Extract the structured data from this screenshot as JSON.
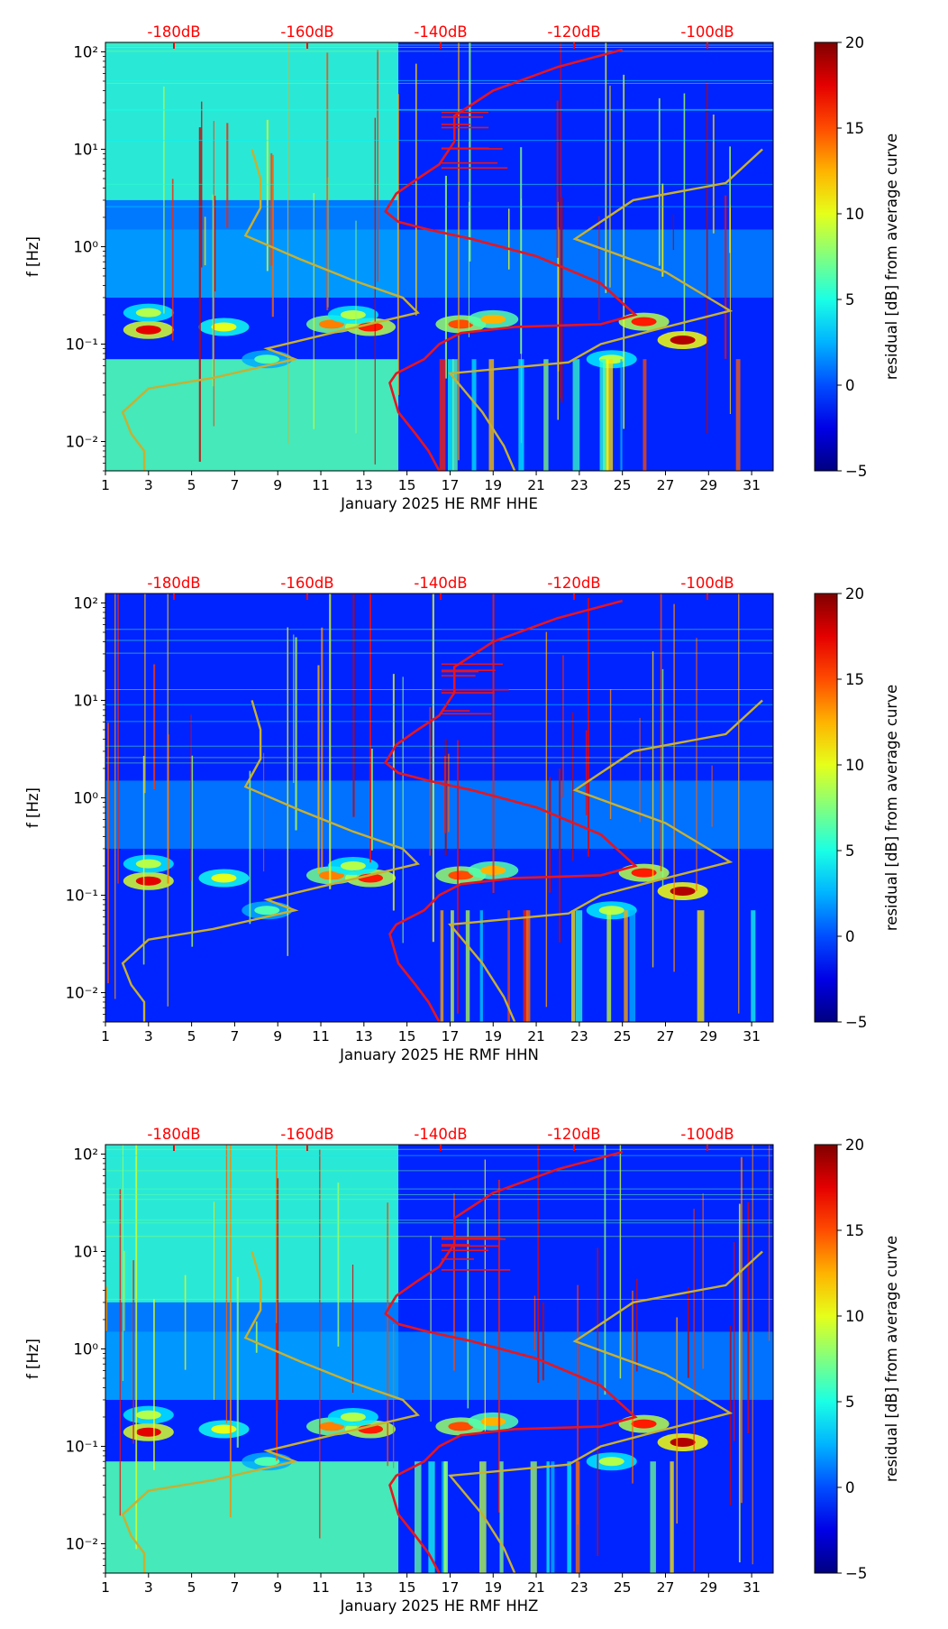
{
  "chart_data": [
    {
      "type": "heatmap",
      "channel": "HHE",
      "xlabel": "January 2025 HE RMF  HHE",
      "ylabel": "f [Hz]",
      "xlim": [
        1,
        32
      ],
      "ylim": [
        0.005,
        125
      ],
      "y_scale": "log",
      "x_ticks": [
        "1",
        "3",
        "5",
        "7",
        "9",
        "11",
        "13",
        "15",
        "17",
        "19",
        "21",
        "23",
        "25",
        "27",
        "29",
        "31"
      ],
      "y_ticks": [
        "10⁻²",
        "10⁻¹",
        "10⁰",
        "10¹",
        "10²"
      ],
      "top_axis": {
        "ticks": [
          "-180dB",
          "-160dB",
          "-140dB",
          "-120dB",
          "-100dB"
        ],
        "color": "#ff0000"
      },
      "colorbar": {
        "label": "residual [dB] from average curve",
        "range": [
          -5,
          20
        ],
        "ticks": [
          "20",
          "15",
          "10",
          "5",
          "0",
          "−5"
        ]
      },
      "elevated_noise_until_day": 14.6,
      "series": [
        {
          "name": "reference model curve",
          "color": "#c8b030"
        },
        {
          "name": "average noise curve",
          "color": "#e8141e"
        }
      ]
    },
    {
      "type": "heatmap",
      "channel": "HHN",
      "xlabel": "January 2025 HE RMF  HHN",
      "ylabel": "f [Hz]",
      "xlim": [
        1,
        32
      ],
      "ylim": [
        0.005,
        125
      ],
      "y_scale": "log",
      "x_ticks": [
        "1",
        "3",
        "5",
        "7",
        "9",
        "11",
        "13",
        "15",
        "17",
        "19",
        "21",
        "23",
        "25",
        "27",
        "29",
        "31"
      ],
      "y_ticks": [
        "10⁻²",
        "10⁻¹",
        "10⁰",
        "10¹",
        "10²"
      ],
      "top_axis": {
        "ticks": [
          "-180dB",
          "-160dB",
          "-140dB",
          "-120dB",
          "-100dB"
        ],
        "color": "#ff0000"
      },
      "colorbar": {
        "label": "residual [dB] from average curve",
        "range": [
          -5,
          20
        ],
        "ticks": [
          "20",
          "15",
          "10",
          "5",
          "0",
          "−5"
        ]
      },
      "elevated_noise_until_day": 1,
      "series": [
        {
          "name": "reference model curve",
          "color": "#c8b030"
        },
        {
          "name": "average noise curve",
          "color": "#e8141e"
        }
      ]
    },
    {
      "type": "heatmap",
      "channel": "HHZ",
      "xlabel": "January 2025 HE RMF  HHZ",
      "ylabel": "f [Hz]",
      "xlim": [
        1,
        32
      ],
      "ylim": [
        0.005,
        125
      ],
      "y_scale": "log",
      "x_ticks": [
        "1",
        "3",
        "5",
        "7",
        "9",
        "11",
        "13",
        "15",
        "17",
        "19",
        "21",
        "23",
        "25",
        "27",
        "29",
        "31"
      ],
      "y_ticks": [
        "10⁻²",
        "10⁻¹",
        "10⁰",
        "10¹",
        "10²"
      ],
      "top_axis": {
        "ticks": [
          "-180dB",
          "-160dB",
          "-140dB",
          "-120dB",
          "-100dB"
        ],
        "color": "#ff0000"
      },
      "colorbar": {
        "label": "residual [dB] from average curve",
        "range": [
          -5,
          20
        ],
        "ticks": [
          "20",
          "15",
          "10",
          "5",
          "0",
          "−5"
        ]
      },
      "elevated_noise_until_day": 14.6,
      "series": [
        {
          "name": "reference model curve",
          "color": "#c8b030"
        },
        {
          "name": "average noise curve",
          "color": "#e8141e"
        }
      ]
    }
  ]
}
